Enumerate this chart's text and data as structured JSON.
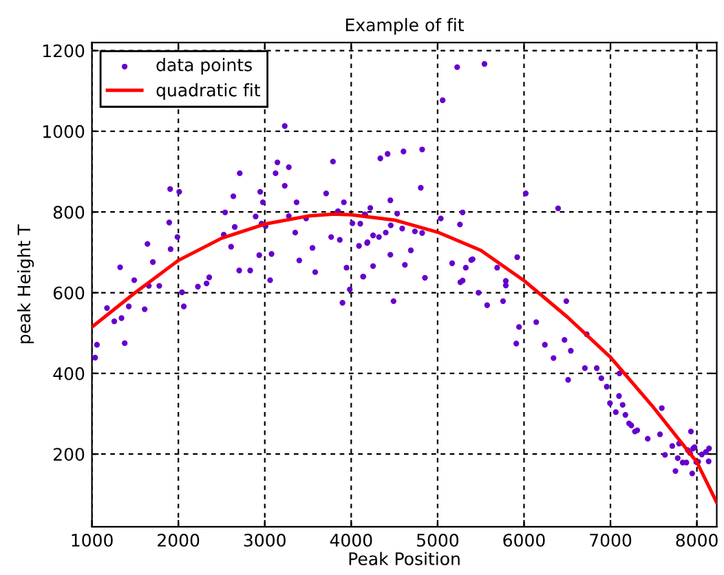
{
  "chart_data": {
    "type": "scatter",
    "title": "Example of fit",
    "xlabel": "Peak Position",
    "ylabel": "peak Height T",
    "xlim": [
      1000,
      8230
    ],
    "ylim": [
      20,
      1220
    ],
    "xticks": [
      1000,
      2000,
      3000,
      4000,
      5000,
      6000,
      7000,
      8000
    ],
    "yticks": [
      200,
      400,
      600,
      800,
      1000,
      1200
    ],
    "grid": true,
    "legend": "top left",
    "series": [
      {
        "name": "data points",
        "marker": "circle",
        "color": "#6600cc",
        "x": [
          1326,
          1489,
          1642,
          1658,
          1705,
          1779,
          1905,
          1910,
          1894,
          1989,
          2010,
          2042,
          2226,
          2326,
          2357,
          2525,
          2541,
          2610,
          2636,
          2652,
          2710,
          2704,
          2831,
          2894,
          2936,
          2947,
          2978,
          2962,
          3009,
          3062,
          3078,
          3125,
          3146,
          3231,
          3231,
          3278,
          3278,
          3352,
          3368,
          3399,
          3478,
          3552,
          3583,
          3710,
          3768,
          3789,
          3847,
          3868,
          3915,
          3946,
          3983,
          3899,
          4014,
          4140,
          4156,
          4188,
          5226,
          5542,
          5058,
          4337,
          4421,
          4605,
          4821,
          4805,
          4453,
          4221,
          4163,
          4532,
          4105,
          4090,
          4184,
          4253,
          4321,
          4400,
          4458,
          4590,
          4737,
          4821,
          4453,
          4690,
          4253,
          4621,
          4137,
          4853,
          5037,
          5289,
          5258,
          5405,
          5389,
          5168,
          5326,
          5289,
          5263,
          5689,
          5921,
          5789,
          5789,
          6020,
          6394,
          5473,
          4490,
          5757,
          6489,
          1037,
          1058,
          1174,
          1258,
          1342,
          1379,
          1426,
          1610,
          2063,
          5573,
          6141,
          5942,
          5910,
          6241,
          6341,
          6468,
          6541,
          6510,
          6725,
          6704,
          6841,
          6894,
          6957,
          6994,
          7062,
          7104,
          7099,
          7141,
          7173,
          7215,
          7241,
          7283,
          7310,
          7431,
          7594,
          7573,
          7715,
          7794,
          7631,
          7752,
          7778,
          7836,
          7878,
          7894,
          7931,
          7920,
          7957,
          7973,
          7946,
          7993,
          8015,
          8057,
          8104,
          8141,
          8136
        ],
        "values": [
          663,
          631,
          721,
          617,
          676,
          617,
          857,
          708,
          774,
          738,
          850,
          601,
          615,
          623,
          638,
          744,
          799,
          714,
          839,
          763,
          896,
          655,
          655,
          789,
          693,
          850,
          824,
          771,
          765,
          631,
          696,
          896,
          923,
          1013,
          865,
          911,
          790,
          749,
          824,
          680,
          784,
          711,
          651,
          846,
          738,
          925,
          802,
          731,
          824,
          662,
          608,
          575,
          772,
          640,
          794,
          725,
          1159,
          1167,
          1077,
          933,
          944,
          950,
          955,
          860,
          829,
          810,
          793,
          796,
          771,
          716,
          723,
          742,
          738,
          749,
          767,
          759,
          752,
          748,
          694,
          705,
          666,
          669,
          640,
          637,
          784,
          799,
          769,
          683,
          681,
          673,
          662,
          630,
          626,
          662,
          688,
          629,
          618,
          846,
          809,
          600,
          579,
          579,
          579,
          439,
          471,
          562,
          529,
          537,
          475,
          566,
          559,
          566,
          569,
          527,
          515,
          474,
          471,
          438,
          483,
          456,
          384,
          497,
          413,
          413,
          388,
          367,
          326,
          304,
          400,
          344,
          322,
          297,
          276,
          271,
          256,
          259,
          238,
          314,
          249,
          220,
          226,
          198,
          158,
          190,
          179,
          179,
          210,
          256,
          203,
          214,
          217,
          152,
          180,
          181,
          199,
          205,
          214,
          182
        ]
      },
      {
        "name": "quadratic fit",
        "type": "line",
        "marker": "none",
        "line_style": "solid",
        "color": "#ff0000",
        "x": [
          1000,
          1500,
          2000,
          2500,
          3000,
          3500,
          3800,
          4000,
          4500,
          5000,
          5500,
          6000,
          6500,
          7000,
          7500,
          8000,
          8230
        ],
        "values": [
          515,
          600,
          680,
          735,
          770,
          790,
          795,
          793,
          780,
          750,
          705,
          630,
          540,
          440,
          315,
          180,
          80
        ]
      }
    ]
  }
}
